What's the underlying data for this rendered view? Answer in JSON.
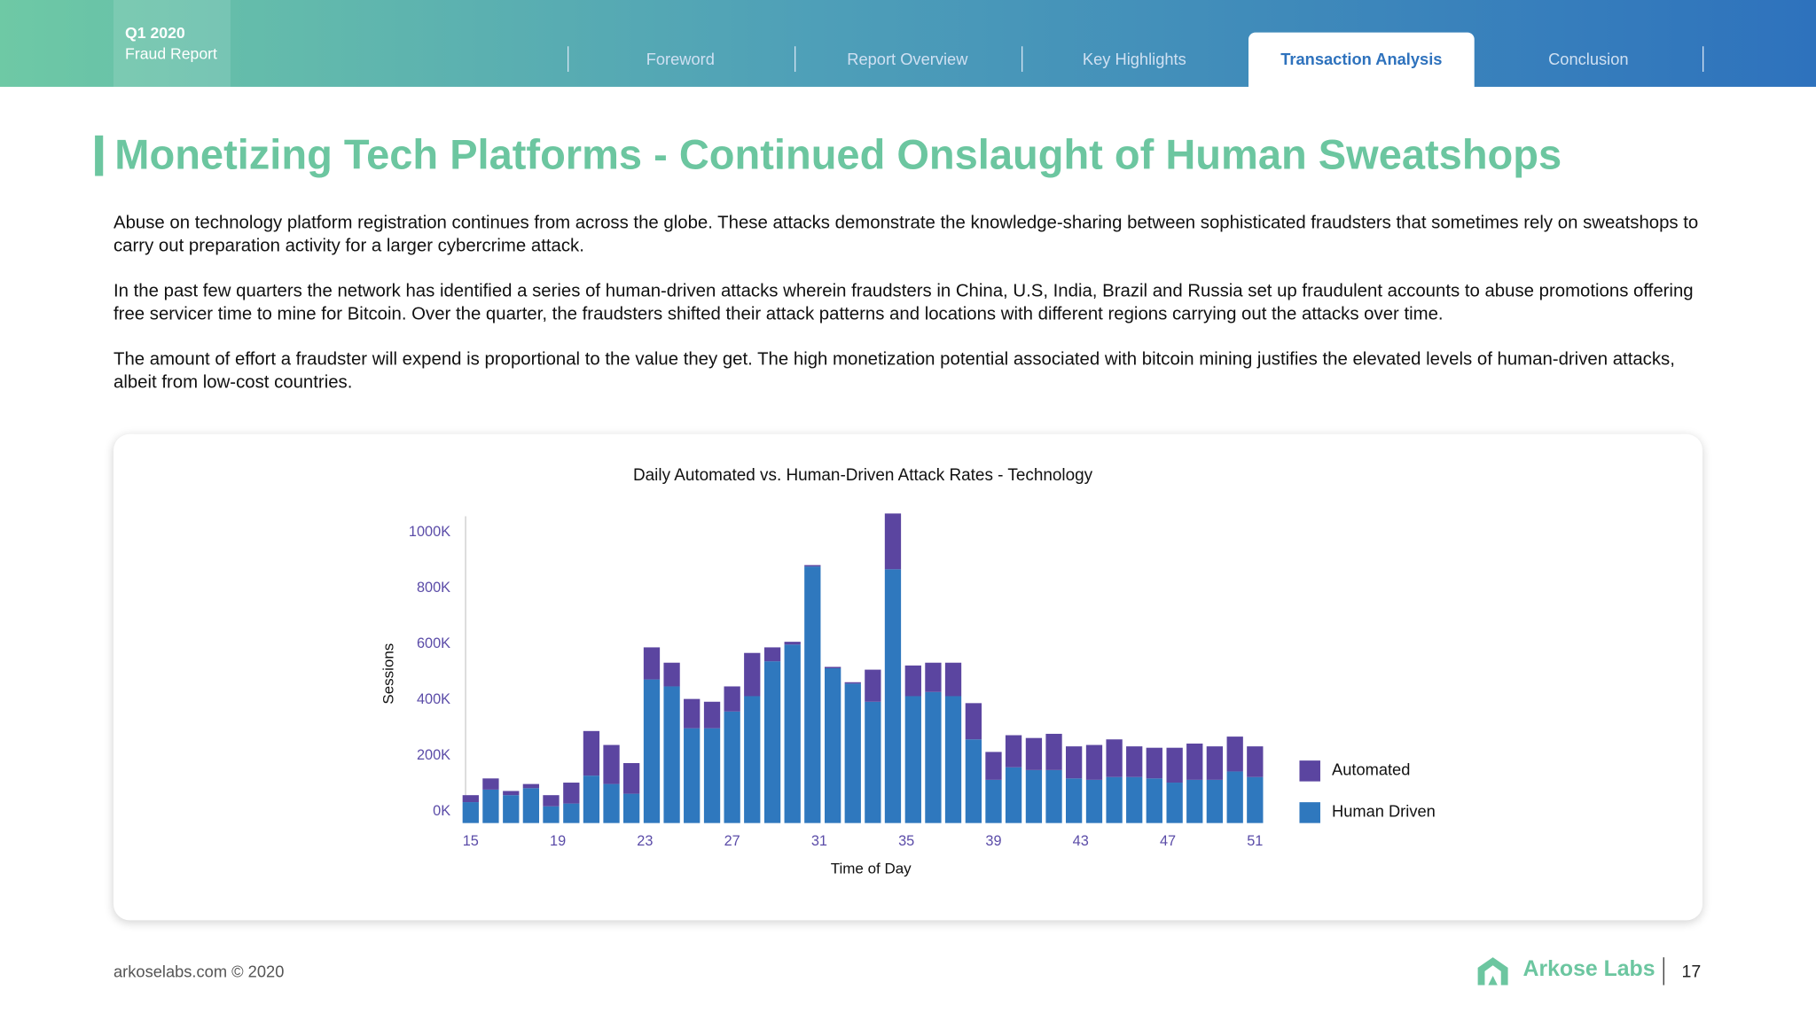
{
  "header": {
    "report_quarter": "Q1 2020",
    "report_name": "Fraud Report",
    "nav": [
      "Foreword",
      "Report Overview",
      "Key Highlights",
      "Transaction Analysis",
      "Conclusion"
    ],
    "active_tab": 3
  },
  "title": "Monetizing Tech Platforms - Continued Onslaught of Human Sweatshops",
  "paragraphs": [
    "Abuse on technology platform registration continues from across the globe. These attacks demonstrate the knowledge-sharing between sophisticated fraudsters that sometimes rely on sweatshops to carry out preparation activity for a larger cybercrime attack.",
    "In the past few quarters the network has identified a series of human-driven attacks wherein fraudsters in China, U.S, India, Brazil and Russia set up fraudulent accounts to abuse promotions offering free servicer time to mine for Bitcoin. Over the quarter, the fraudsters shifted their attack patterns and locations with different regions carrying out the attacks over time.",
    "The amount of effort a fraudster will expend is proportional to the value they get. The high monetization potential associated with bitcoin mining justifies the elevated levels of human-driven attacks, albeit from low-cost countries."
  ],
  "chart_data": {
    "type": "stacked_bar",
    "title": "Daily Automated vs. Human-Driven Attack Rates - Technology",
    "x_label": "Time of Day",
    "y_label": "Sessions",
    "x": [
      15,
      15.92,
      16.85,
      17.77,
      18.69,
      19.62,
      20.54,
      21.46,
      22.38,
      23.31,
      24.23,
      25.15,
      26.08,
      27,
      27.92,
      28.85,
      29.77,
      30.69,
      31.62,
      32.54,
      33.46,
      34.38,
      35.31,
      36.23,
      37.15,
      38.08,
      39,
      39.92,
      40.85,
      41.77,
      42.69,
      43.62,
      44.54,
      45.46,
      46.38,
      47.31,
      48.23,
      49.15,
      50.08,
      51
    ],
    "series": [
      {
        "name": "Automated",
        "color": "#5b45a0",
        "values": [
          25000,
          40000,
          15000,
          15000,
          40000,
          75000,
          160000,
          140000,
          110000,
          115000,
          85000,
          105000,
          95000,
          90000,
          155000,
          50000,
          10000,
          5000,
          5000,
          5000,
          115000,
          200000,
          110000,
          105000,
          120000,
          130000,
          100000,
          115000,
          115000,
          130000,
          115000,
          125000,
          135000,
          110000,
          110000,
          125000,
          130000,
          120000,
          125000,
          110000
        ]
      },
      {
        "name": "Human Driven",
        "color": "#2f78be",
        "values": [
          75000,
          120000,
          100000,
          125000,
          60000,
          70000,
          170000,
          140000,
          105000,
          515000,
          490000,
          340000,
          340000,
          400000,
          455000,
          580000,
          640000,
          920000,
          555000,
          500000,
          435000,
          910000,
          455000,
          470000,
          455000,
          300000,
          155000,
          200000,
          190000,
          190000,
          160000,
          155000,
          165000,
          165000,
          160000,
          145000,
          155000,
          155000,
          185000,
          165000
        ]
      }
    ],
    "xlim": [
      14.5,
      51.5
    ],
    "xticks": [
      15,
      19,
      23,
      27,
      31,
      35,
      39,
      43,
      47,
      51
    ],
    "ylim": [
      0,
      1100000
    ],
    "yticks": [
      {
        "value": 0,
        "label": "0K"
      },
      {
        "value": 200000,
        "label": "200K"
      },
      {
        "value": 400000,
        "label": "400K"
      },
      {
        "value": 600000,
        "label": "600K"
      },
      {
        "value": 800000,
        "label": "800K"
      },
      {
        "value": 1000000,
        "label": "1000K"
      }
    ],
    "grid": false,
    "legend": "right"
  },
  "footer": {
    "copyright": "arkoselabs.com © 2020",
    "brand": "Arkose Labs",
    "page": "17"
  }
}
